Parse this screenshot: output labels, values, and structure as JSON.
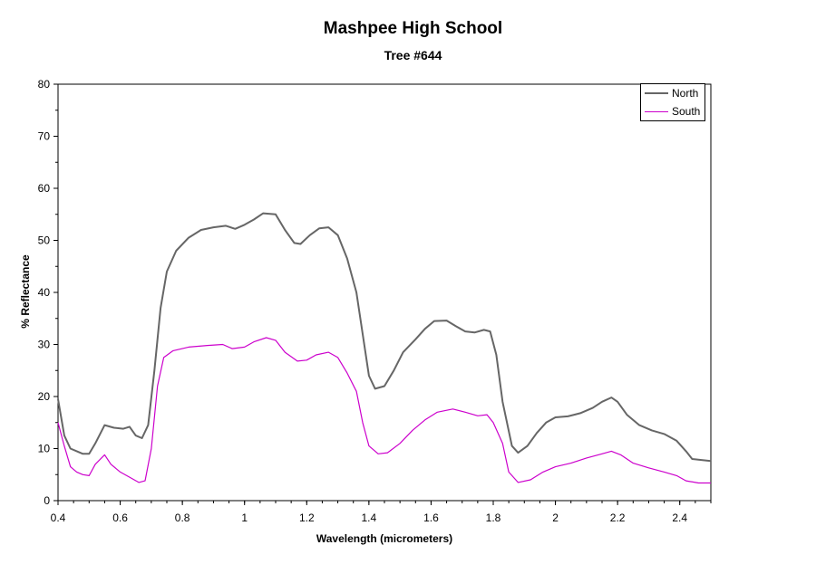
{
  "chart_data": {
    "type": "line",
    "title": "Mashpee High School",
    "subtitle": "Tree #644",
    "xlabel": "Wavelength (micrometers)",
    "ylabel": "% Reflectance",
    "xlim": [
      0.4,
      2.5
    ],
    "ylim": [
      0,
      80
    ],
    "x_ticks": [
      "0.4",
      "0.6",
      "0.8",
      "1",
      "1.2",
      "1.4",
      "1.6",
      "1.8",
      "2",
      "2.2",
      "2.4"
    ],
    "y_ticks": [
      "0",
      "10",
      "20",
      "30",
      "40",
      "50",
      "60",
      "70",
      "80"
    ],
    "grid": false,
    "legend_position": "top-right",
    "series": [
      {
        "name": "North",
        "color": "#666666",
        "points": [
          [
            0.4,
            19.5
          ],
          [
            0.42,
            12.5
          ],
          [
            0.44,
            10.0
          ],
          [
            0.46,
            9.5
          ],
          [
            0.48,
            9.0
          ],
          [
            0.5,
            9.0
          ],
          [
            0.52,
            11.0
          ],
          [
            0.55,
            14.5
          ],
          [
            0.58,
            14.0
          ],
          [
            0.61,
            13.8
          ],
          [
            0.63,
            14.2
          ],
          [
            0.65,
            12.5
          ],
          [
            0.67,
            12.0
          ],
          [
            0.69,
            14.5
          ],
          [
            0.71,
            25.0
          ],
          [
            0.73,
            37.0
          ],
          [
            0.75,
            44.0
          ],
          [
            0.78,
            48.0
          ],
          [
            0.82,
            50.5
          ],
          [
            0.86,
            52.0
          ],
          [
            0.9,
            52.5
          ],
          [
            0.94,
            52.8
          ],
          [
            0.97,
            52.2
          ],
          [
            1.0,
            53.0
          ],
          [
            1.03,
            54.0
          ],
          [
            1.06,
            55.2
          ],
          [
            1.1,
            55.0
          ],
          [
            1.13,
            52.0
          ],
          [
            1.16,
            49.5
          ],
          [
            1.18,
            49.3
          ],
          [
            1.21,
            51.0
          ],
          [
            1.24,
            52.3
          ],
          [
            1.27,
            52.5
          ],
          [
            1.3,
            51.0
          ],
          [
            1.33,
            46.5
          ],
          [
            1.36,
            40.0
          ],
          [
            1.38,
            32.0
          ],
          [
            1.4,
            24.0
          ],
          [
            1.42,
            21.5
          ],
          [
            1.45,
            22.0
          ],
          [
            1.48,
            25.0
          ],
          [
            1.51,
            28.5
          ],
          [
            1.55,
            31.0
          ],
          [
            1.58,
            33.0
          ],
          [
            1.61,
            34.5
          ],
          [
            1.65,
            34.6
          ],
          [
            1.68,
            33.5
          ],
          [
            1.71,
            32.5
          ],
          [
            1.74,
            32.3
          ],
          [
            1.77,
            32.8
          ],
          [
            1.79,
            32.5
          ],
          [
            1.81,
            28.0
          ],
          [
            1.83,
            19.0
          ],
          [
            1.86,
            10.5
          ],
          [
            1.88,
            9.2
          ],
          [
            1.91,
            10.5
          ],
          [
            1.94,
            13.0
          ],
          [
            1.97,
            15.0
          ],
          [
            2.0,
            16.0
          ],
          [
            2.04,
            16.2
          ],
          [
            2.08,
            16.8
          ],
          [
            2.12,
            17.8
          ],
          [
            2.15,
            19.0
          ],
          [
            2.18,
            19.8
          ],
          [
            2.2,
            19.0
          ],
          [
            2.23,
            16.5
          ],
          [
            2.27,
            14.5
          ],
          [
            2.31,
            13.5
          ],
          [
            2.35,
            12.8
          ],
          [
            2.39,
            11.5
          ],
          [
            2.42,
            9.5
          ],
          [
            2.44,
            8.0
          ],
          [
            2.47,
            7.8
          ],
          [
            2.5,
            7.6
          ]
        ]
      },
      {
        "name": "South",
        "color": "#cc00cc",
        "points": [
          [
            0.4,
            15.0
          ],
          [
            0.42,
            10.5
          ],
          [
            0.44,
            6.5
          ],
          [
            0.46,
            5.5
          ],
          [
            0.48,
            5.0
          ],
          [
            0.5,
            4.8
          ],
          [
            0.52,
            7.0
          ],
          [
            0.55,
            8.8
          ],
          [
            0.57,
            7.0
          ],
          [
            0.6,
            5.5
          ],
          [
            0.63,
            4.5
          ],
          [
            0.66,
            3.5
          ],
          [
            0.68,
            3.8
          ],
          [
            0.7,
            10.0
          ],
          [
            0.72,
            22.0
          ],
          [
            0.74,
            27.5
          ],
          [
            0.77,
            28.8
          ],
          [
            0.82,
            29.5
          ],
          [
            0.88,
            29.8
          ],
          [
            0.93,
            30.0
          ],
          [
            0.96,
            29.2
          ],
          [
            1.0,
            29.5
          ],
          [
            1.03,
            30.5
          ],
          [
            1.07,
            31.3
          ],
          [
            1.1,
            30.8
          ],
          [
            1.13,
            28.5
          ],
          [
            1.17,
            26.8
          ],
          [
            1.2,
            27.0
          ],
          [
            1.23,
            28.0
          ],
          [
            1.27,
            28.5
          ],
          [
            1.3,
            27.5
          ],
          [
            1.33,
            24.5
          ],
          [
            1.36,
            21.0
          ],
          [
            1.38,
            15.0
          ],
          [
            1.4,
            10.5
          ],
          [
            1.43,
            9.0
          ],
          [
            1.46,
            9.2
          ],
          [
            1.5,
            11.0
          ],
          [
            1.54,
            13.5
          ],
          [
            1.58,
            15.5
          ],
          [
            1.62,
            17.0
          ],
          [
            1.67,
            17.6
          ],
          [
            1.71,
            17.0
          ],
          [
            1.75,
            16.3
          ],
          [
            1.78,
            16.5
          ],
          [
            1.8,
            15.0
          ],
          [
            1.83,
            11.0
          ],
          [
            1.85,
            5.5
          ],
          [
            1.88,
            3.5
          ],
          [
            1.92,
            4.0
          ],
          [
            1.96,
            5.5
          ],
          [
            2.0,
            6.5
          ],
          [
            2.05,
            7.2
          ],
          [
            2.1,
            8.2
          ],
          [
            2.15,
            9.0
          ],
          [
            2.18,
            9.5
          ],
          [
            2.21,
            8.8
          ],
          [
            2.25,
            7.2
          ],
          [
            2.3,
            6.3
          ],
          [
            2.35,
            5.5
          ],
          [
            2.39,
            4.8
          ],
          [
            2.42,
            3.8
          ],
          [
            2.46,
            3.4
          ],
          [
            2.5,
            3.4
          ]
        ]
      }
    ]
  }
}
